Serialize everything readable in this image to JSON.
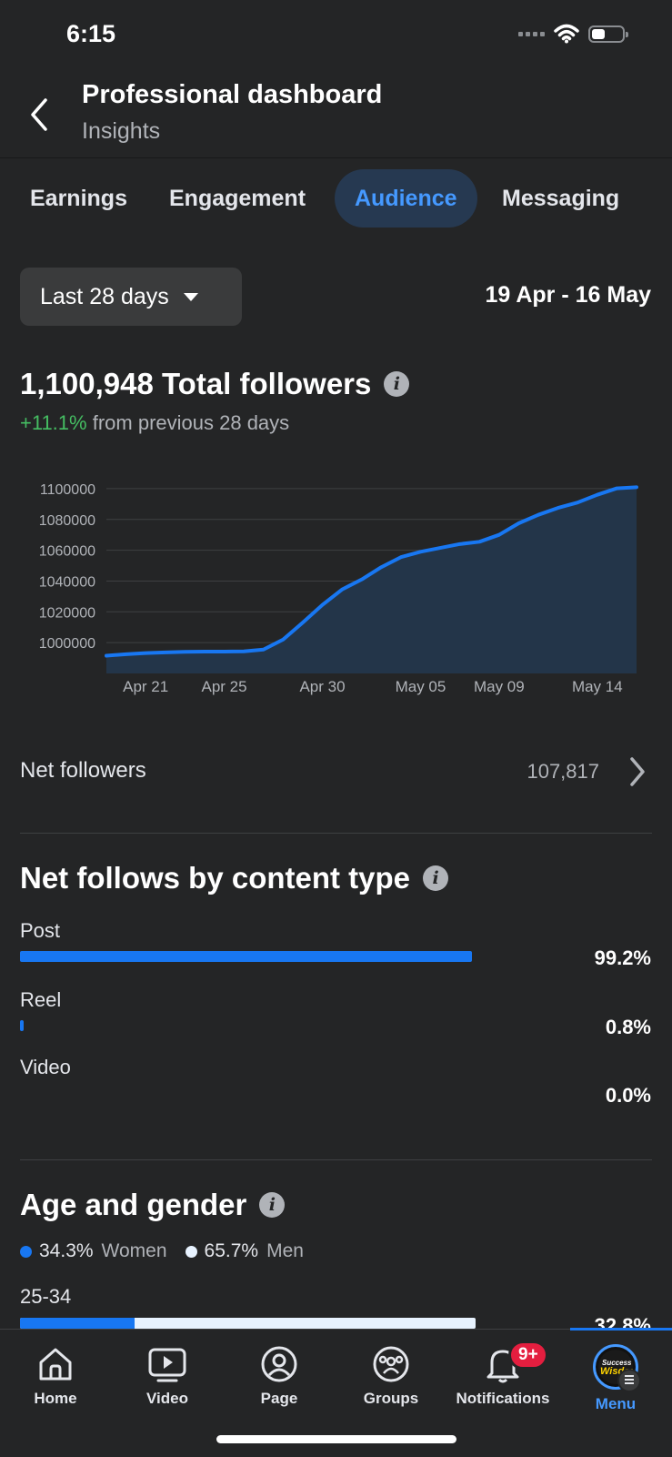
{
  "status": {
    "time": "6:15"
  },
  "header": {
    "title": "Professional dashboard",
    "subtitle": "Insights"
  },
  "tabs": [
    {
      "label": "Earnings",
      "active": false
    },
    {
      "label": "Engagement",
      "active": false
    },
    {
      "label": "Audience",
      "active": true
    },
    {
      "label": "Messaging",
      "active": false
    }
  ],
  "filters": {
    "range_label": "Last 28 days",
    "date_range": "19 Apr - 16 May"
  },
  "summary": {
    "total_followers": "1,100,948 Total followers",
    "change_pct": "+11.1%",
    "change_text": "from previous 28 days"
  },
  "chart_data": {
    "type": "area",
    "x": [
      "19 Apr",
      "20 Apr",
      "21 Apr",
      "22 Apr",
      "23 Apr",
      "24 Apr",
      "25 Apr",
      "26 Apr",
      "27 Apr",
      "28 Apr",
      "29 Apr",
      "30 Apr",
      "1 May",
      "2 May",
      "3 May",
      "4 May",
      "5 May",
      "6 May",
      "7 May",
      "8 May",
      "9 May",
      "10 May",
      "11 May",
      "12 May",
      "13 May",
      "14 May",
      "15 May",
      "16 May"
    ],
    "values": [
      991500,
      992500,
      993200,
      993700,
      994000,
      994200,
      994200,
      994300,
      995500,
      1002000,
      1013000,
      1024500,
      1034500,
      1041000,
      1049000,
      1055500,
      1059000,
      1061500,
      1064000,
      1065500,
      1070000,
      1077500,
      1083000,
      1087500,
      1091000,
      1096000,
      1100200,
      1100948
    ],
    "x_tick_labels": [
      {
        "label": "Apr 21",
        "index": 2
      },
      {
        "label": "Apr 25",
        "index": 6
      },
      {
        "label": "Apr 30",
        "index": 11
      },
      {
        "label": "May 05",
        "index": 16
      },
      {
        "label": "May 09",
        "index": 20
      },
      {
        "label": "May 14",
        "index": 25
      }
    ],
    "y_ticks": [
      1000000,
      1020000,
      1040000,
      1060000,
      1080000,
      1100000
    ],
    "ylim": [
      980000,
      1100000
    ],
    "grid": true,
    "line_color": "#1877f2",
    "fill_color": "#233549"
  },
  "net_followers": {
    "label": "Net followers",
    "value": "107,817"
  },
  "content_type": {
    "title": "Net follows by content type",
    "items": [
      {
        "label": "Post",
        "pct_text": "99.2%",
        "pct": 99.2
      },
      {
        "label": "Reel",
        "pct_text": "0.8%",
        "pct": 0.8
      },
      {
        "label": "Video",
        "pct_text": "0.0%",
        "pct": 0.0
      }
    ]
  },
  "age_gender": {
    "title": "Age and gender",
    "women_pct": "34.3%",
    "women_label": "Women",
    "men_pct": "65.7%",
    "men_label": "Men",
    "groups": [
      {
        "label": "25-34",
        "pct_text": "32.8%",
        "women_share": 25.2
      }
    ]
  },
  "nav": {
    "items": [
      {
        "label": "Home",
        "icon": "home-icon"
      },
      {
        "label": "Video",
        "icon": "video-icon"
      },
      {
        "label": "Page",
        "icon": "page-icon"
      },
      {
        "label": "Groups",
        "icon": "groups-icon"
      },
      {
        "label": "Notifications",
        "icon": "bell-icon",
        "badge": "9+"
      },
      {
        "label": "Menu",
        "icon": "avatar",
        "active": true
      }
    ]
  },
  "avatar_text": {
    "line1": "Success",
    "line2": "Wisdom"
  },
  "colors": {
    "accent": "#1877f2",
    "background": "#242526",
    "positive": "#45bd62",
    "badge": "#e41e3f"
  }
}
